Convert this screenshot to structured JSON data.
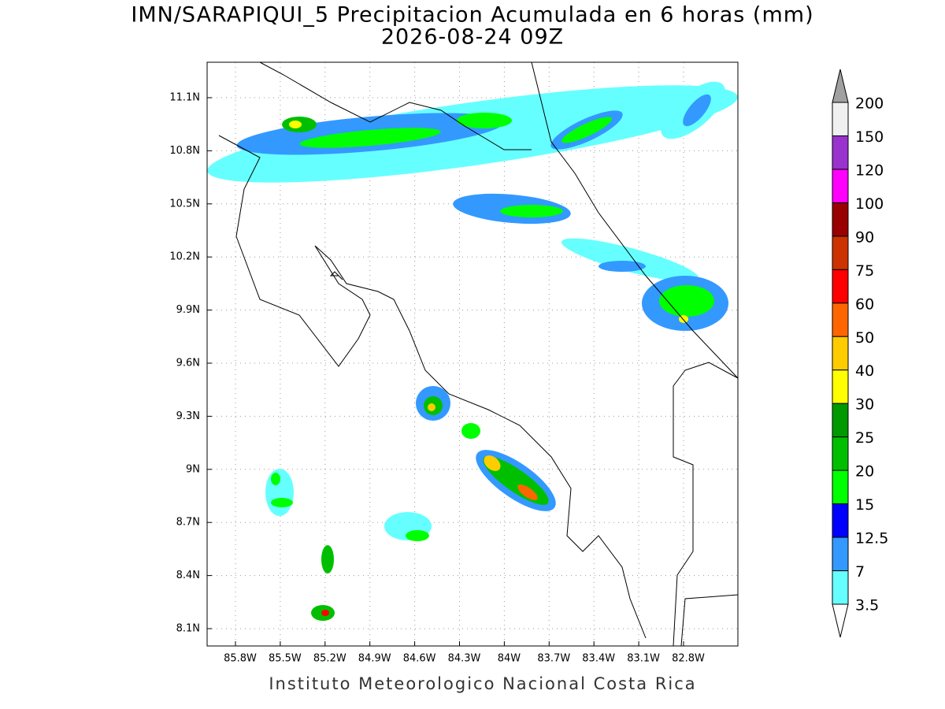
{
  "header": {
    "title": "IMN/SARAPIQUI_5 Precipitacion Acumulada en 6 horas (mm)",
    "subtitle": "2026-08-24 09Z"
  },
  "map": {
    "x_labels": [
      "85.8W",
      "85.5W",
      "85.2W",
      "84.9W",
      "84.6W",
      "84.3W",
      "84W",
      "83.7W",
      "83.4W",
      "83.1W",
      "82.8W"
    ],
    "y_labels": [
      "11.1N",
      "10.8N",
      "10.5N",
      "10.2N",
      "9.9N",
      "9.6N",
      "9.3N",
      "9N",
      "8.7N",
      "8.4N",
      "8.1N"
    ]
  },
  "colorbar": {
    "labels": [
      "200",
      "150",
      "120",
      "100",
      "90",
      "75",
      "60",
      "50",
      "40",
      "30",
      "25",
      "20",
      "15",
      "12.5",
      "7",
      "3.5"
    ],
    "colors": [
      "#f0f0f0",
      "#9a32cd",
      "#ff00ff",
      "#990000",
      "#cc3300",
      "#ff0000",
      "#ff6600",
      "#ffcc00",
      "#ffff00",
      "#009900",
      "#00bf00",
      "#00ff00",
      "#0000ff",
      "#3399ff",
      "#66ffff"
    ],
    "over_color": "#a0a0a0",
    "under_color": "#ffffff"
  },
  "footer": "Instituto Meteorologico Nacional Costa Rica"
}
